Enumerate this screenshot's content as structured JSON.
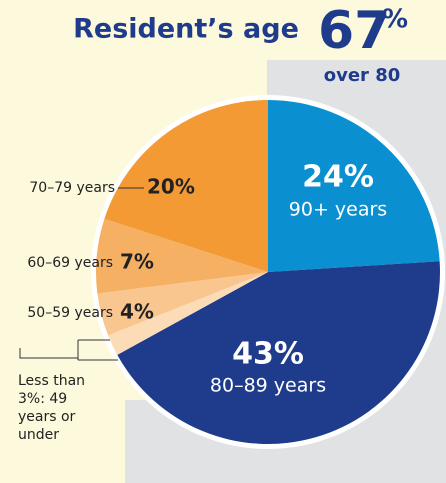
{
  "chart_data": {
    "type": "pie",
    "title": "Resident’s age",
    "headline": "67",
    "headline_unit": "%",
    "headline_note": "over 80",
    "categories": [
      "90+ years",
      "80–89 years",
      "49 years or under",
      "50–59 years",
      "60–69 years",
      "70–79 years"
    ],
    "values": [
      24,
      43,
      2,
      4,
      7,
      20
    ],
    "value_labels": [
      "24%",
      "43%",
      "Less than 3%:",
      "4%",
      "7%",
      "20%"
    ],
    "colors": [
      "#0a8fd0",
      "#1f3c8c",
      "#fcdcb7",
      "#f9c690",
      "#f6b064",
      "#f39a34"
    ]
  }
}
